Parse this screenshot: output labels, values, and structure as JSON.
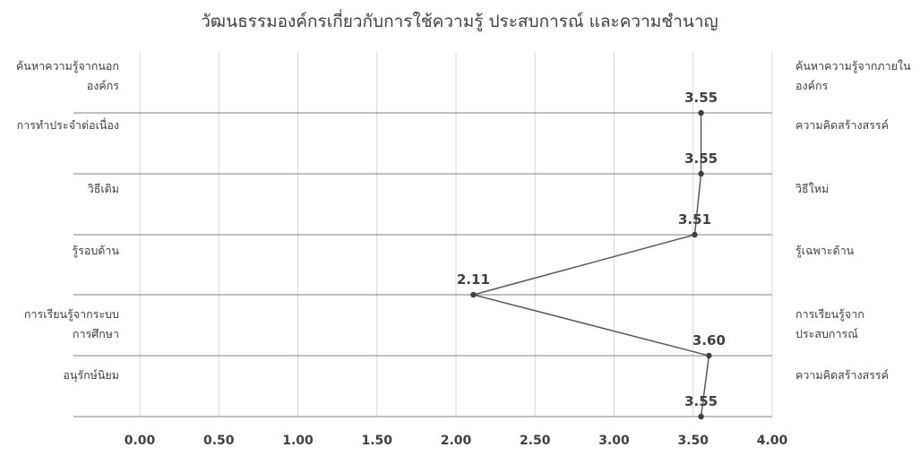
{
  "chart_data": {
    "type": "line",
    "title": "วัฒนธรรมองค์กรเกี่ยวกับการใช้ความรู้ ประสบการณ์ และความชำนาญ",
    "orientation": "horizontal-values",
    "xlim": [
      0,
      4
    ],
    "xticks": [
      "0.00",
      "0.50",
      "1.00",
      "1.50",
      "2.00",
      "2.50",
      "3.00",
      "3.50",
      "4.00"
    ],
    "grid": true,
    "left_labels": [
      [
        "ค้นหาความรู้จากนอก",
        "องค์กร"
      ],
      [
        "การทำประจำต่อเนื่อง"
      ],
      [
        "วิธีเดิม"
      ],
      [
        "รู้รอบด้าน"
      ],
      [
        "การเรียนรู้จากระบบ",
        "การศึกษา"
      ],
      [
        "อนุรักษ์นิยม"
      ]
    ],
    "right_labels": [
      [
        "ค้นหาความรู้จากภายใน",
        "องค์กร"
      ],
      [
        "ความคิดสร้างสรรค์"
      ],
      [
        "วิธีใหม่"
      ],
      [
        "รู้เฉพาะด้าน"
      ],
      [
        "การเรียนรู้จาก",
        "ประสบการณ์"
      ],
      [
        "ความคิดสร้างสรรค์"
      ]
    ],
    "values": [
      3.55,
      3.55,
      3.51,
      2.11,
      3.6,
      3.55
    ],
    "labels": [
      "3.55",
      "3.55",
      "3.51",
      "2.11",
      "3.60",
      "3.55"
    ],
    "line_color": "#595959",
    "grid_color": "#d9d9d9",
    "row_line_color": "#808080"
  }
}
